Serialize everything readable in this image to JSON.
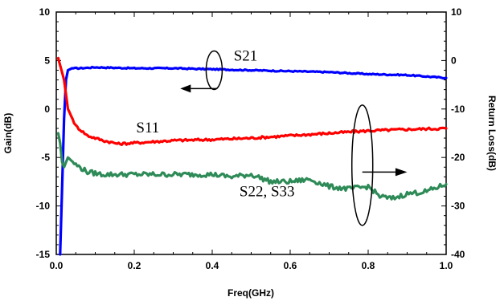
{
  "chart_data": {
    "type": "line",
    "title": "",
    "xlabel": "Freq(GHz)",
    "ylabel_left": "Gain(dB)",
    "ylabel_right": "Return Loss(dB)",
    "xlim": [
      0,
      1
    ],
    "ylim_left": [
      -15,
      10
    ],
    "ylim_right": [
      -40,
      10
    ],
    "x_ticks": [
      0,
      0.2,
      0.4,
      0.6,
      0.8,
      1.0
    ],
    "x_tick_labels": [
      "0.0",
      "0.2",
      "0.4",
      "0.6",
      "0.8",
      "1.0"
    ],
    "y_left_ticks": [
      -15,
      -10,
      -5,
      0,
      5,
      10
    ],
    "y_right_ticks": [
      -40,
      -30,
      -20,
      -10,
      0,
      10
    ],
    "grid": false,
    "legend": "none",
    "series": [
      {
        "name": "S21",
        "axis": "left",
        "color": "#0000ff",
        "x": [
          0.01,
          0.015,
          0.02,
          0.025,
          0.03,
          0.04,
          0.06,
          0.1,
          0.2,
          0.3,
          0.4,
          0.5,
          0.6,
          0.7,
          0.8,
          0.9,
          1.0
        ],
        "y": [
          -15,
          -8,
          -1,
          3,
          4.0,
          4.2,
          4.2,
          4.3,
          4.2,
          4.2,
          4.1,
          4.0,
          3.9,
          3.8,
          3.6,
          3.5,
          3.2
        ]
      },
      {
        "name": "S11",
        "axis": "right",
        "color": "#ff0000",
        "x": [
          0.005,
          0.01,
          0.02,
          0.03,
          0.05,
          0.08,
          0.12,
          0.16,
          0.2,
          0.3,
          0.4,
          0.5,
          0.6,
          0.7,
          0.8,
          0.9,
          1.0
        ],
        "y": [
          0.5,
          -1,
          -4,
          -10,
          -13.5,
          -15.5,
          -16.5,
          -17.2,
          -17,
          -16.5,
          -16.3,
          -16,
          -15.5,
          -15,
          -14.5,
          -14.2,
          -14
        ]
      },
      {
        "name": "S22, S33",
        "axis": "right",
        "color": "#2e8b57",
        "x": [
          0.005,
          0.01,
          0.015,
          0.02,
          0.03,
          0.05,
          0.08,
          0.12,
          0.2,
          0.3,
          0.4,
          0.45,
          0.5,
          0.55,
          0.6,
          0.65,
          0.7,
          0.75,
          0.8,
          0.83,
          0.86,
          0.9,
          0.95,
          1.0
        ],
        "y": [
          -15,
          -17,
          -21,
          -22,
          -20,
          -21.5,
          -23,
          -23.5,
          -23.5,
          -23.5,
          -23.5,
          -24,
          -23.5,
          -25,
          -25,
          -24.5,
          -26,
          -26.5,
          -26,
          -28,
          -28.5,
          -27.5,
          -27,
          -25.5
        ]
      }
    ],
    "annotations": [
      {
        "text": "S21",
        "x": 0.455,
        "y": 5.0,
        "axis": "left"
      },
      {
        "text": "S11",
        "x": 0.205,
        "y": -2.4,
        "axis": "left"
      },
      {
        "text": "S22, S33",
        "x": 0.47,
        "y": -9.0,
        "axis": "left"
      }
    ]
  }
}
